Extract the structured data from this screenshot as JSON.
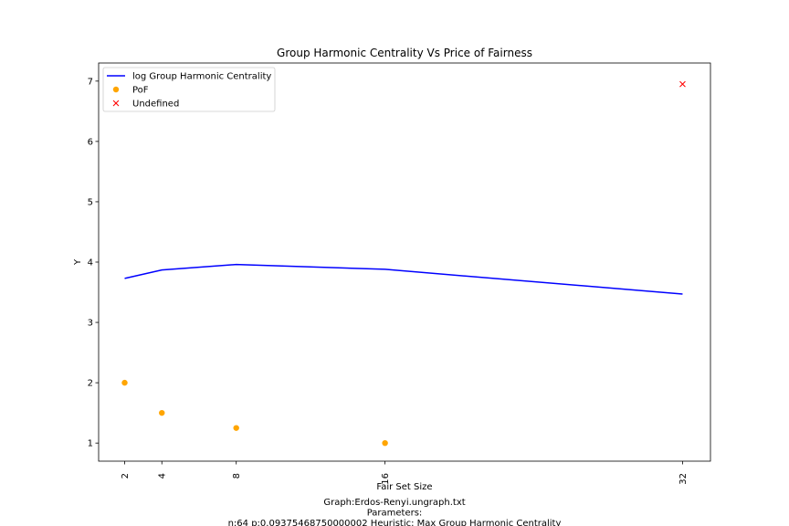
{
  "chart_data": {
    "type": "line",
    "title": "Group Harmonic Centrality Vs Price of Fairness",
    "xlabel": "Fair Set Size",
    "ylabel": "Y",
    "x_ticks": [
      2,
      4,
      8,
      16,
      32
    ],
    "y_ticks": [
      1,
      2,
      3,
      4,
      5,
      6,
      7
    ],
    "xlim": [
      0.6,
      33.5
    ],
    "ylim": [
      0.7,
      7.3
    ],
    "grid": false,
    "legend_position": "upper-left",
    "series": [
      {
        "name": "log Group Harmonic Centrality",
        "kind": "line",
        "color": "#0000ff",
        "x": [
          2,
          4,
          8,
          16,
          32
        ],
        "y": [
          3.73,
          3.87,
          3.96,
          3.88,
          3.47
        ]
      },
      {
        "name": "PoF",
        "kind": "scatter",
        "color": "#ffa500",
        "x": [
          2,
          4,
          8,
          16
        ],
        "y": [
          2.0,
          1.5,
          1.25,
          1.0
        ]
      },
      {
        "name": "Undefined",
        "kind": "x-marker",
        "color": "#ff0000",
        "x": [
          32
        ],
        "y": [
          6.95
        ]
      }
    ],
    "caption": [
      "Graph:Erdos-Renyi.ungraph.txt",
      "Parameters:",
      "n:64 p:0.09375468750000002  Heuristic: Max Group Harmonic Centrality"
    ]
  }
}
